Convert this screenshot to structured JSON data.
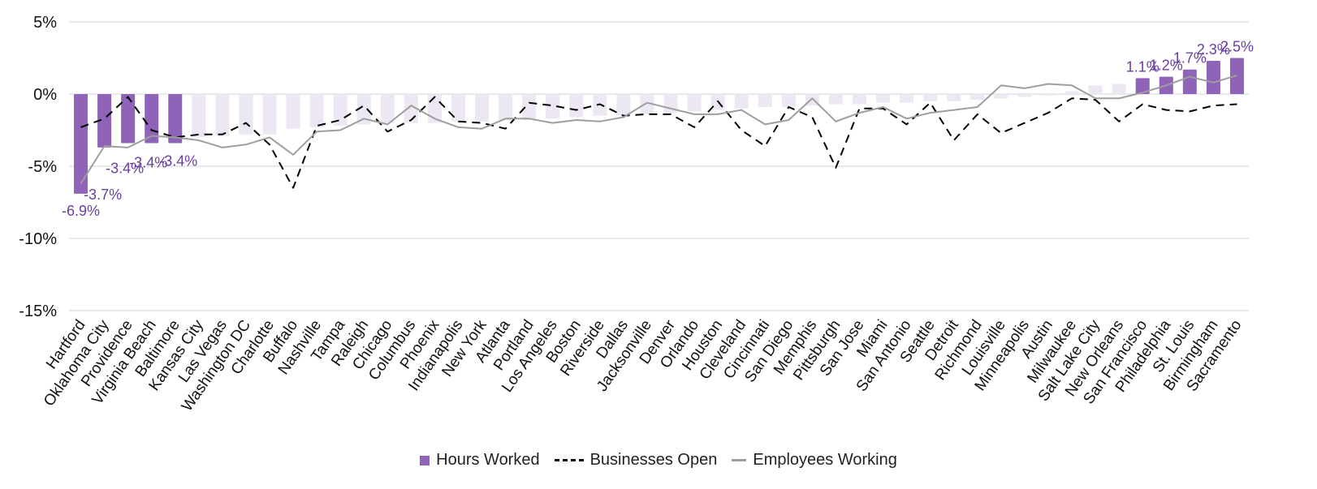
{
  "chart_data": {
    "type": "bar",
    "title": "",
    "xlabel": "",
    "ylabel": "",
    "ylim": [
      -15,
      5
    ],
    "yticks": [
      5,
      0,
      -5,
      -10,
      -15
    ],
    "ytick_labels": [
      "5%",
      "0%",
      "-5%",
      "-10%",
      "-15%"
    ],
    "grid": true,
    "legend_position": "bottom",
    "categories": [
      "Hartford",
      "Oklahoma City",
      "Providence",
      "Virginia Beach",
      "Baltimore",
      "Kansas City",
      "Las Vegas",
      "Washington DC",
      "Charlotte",
      "Buffalo",
      "Nashville",
      "Tampa",
      "Raleigh",
      "Chicago",
      "Columbus",
      "Phoenix",
      "Indianapolis",
      "New York",
      "Atlanta",
      "Portland",
      "Los Angeles",
      "Boston",
      "Riverside",
      "Dallas",
      "Jacksonville",
      "Denver",
      "Orlando",
      "Houston",
      "Cleveland",
      "Cincinnati",
      "San Diego",
      "Memphis",
      "Pittsburgh",
      "San Jose",
      "Miami",
      "San Antonio",
      "Seattle",
      "Detroit",
      "Richmond",
      "Louisville",
      "Minneapolis",
      "Austin",
      "Milwaukee",
      "Salt Lake City",
      "New Orleans",
      "San Francisco",
      "Philadelphia",
      "St. Louis",
      "Birmingham",
      "Sacramento"
    ],
    "series": [
      {
        "name": "Hours Worked",
        "kind": "bar",
        "color": "#8e63b8",
        "faded_color": "#ece7f3",
        "values": [
          -6.9,
          -3.7,
          -3.4,
          -3.4,
          -3.4,
          -3.0,
          -2.9,
          -2.8,
          -2.8,
          -2.4,
          -2.3,
          -2.2,
          -2.1,
          -2.0,
          -2.0,
          -2.0,
          -1.9,
          -1.9,
          -1.8,
          -1.8,
          -1.7,
          -1.6,
          -1.5,
          -1.5,
          -1.4,
          -1.3,
          -1.2,
          -1.1,
          -1.0,
          -0.9,
          -0.9,
          -0.8,
          -0.7,
          -0.7,
          -0.6,
          -0.6,
          -0.5,
          -0.5,
          -0.4,
          -0.3,
          -0.2,
          -0.1,
          0.2,
          0.6,
          0.7,
          1.1,
          1.2,
          1.7,
          2.3,
          2.5
        ],
        "highlighted": [
          true,
          true,
          true,
          true,
          true,
          false,
          false,
          false,
          false,
          false,
          false,
          false,
          false,
          false,
          false,
          false,
          false,
          false,
          false,
          false,
          false,
          false,
          false,
          false,
          false,
          false,
          false,
          false,
          false,
          false,
          false,
          false,
          false,
          false,
          false,
          false,
          false,
          false,
          false,
          false,
          false,
          false,
          false,
          false,
          false,
          true,
          true,
          true,
          true,
          true
        ]
      },
      {
        "name": "Businesses Open",
        "kind": "line-dashed",
        "color": "#000000",
        "values": [
          -2.3,
          -1.7,
          -0.2,
          -2.5,
          -3.0,
          -2.8,
          -2.8,
          -2.0,
          -3.5,
          -6.5,
          -2.2,
          -1.8,
          -0.8,
          -2.6,
          -1.8,
          -0.2,
          -1.9,
          -2.0,
          -2.4,
          -0.6,
          -0.8,
          -1.1,
          -0.7,
          -1.5,
          -1.4,
          -1.4,
          -2.3,
          -0.5,
          -2.5,
          -3.6,
          -0.9,
          -1.6,
          -5.1,
          -1.0,
          -1.0,
          -2.1,
          -0.6,
          -3.2,
          -1.4,
          -2.7,
          -2.0,
          -1.3,
          -0.3,
          -0.4,
          -1.9,
          -0.7,
          -1.1,
          -1.2,
          -0.8,
          -0.7
        ]
      },
      {
        "name": "Employees Working",
        "kind": "line",
        "color": "#9e9e9e",
        "values": [
          -6.2,
          -3.6,
          -3.7,
          -2.9,
          -3.0,
          -3.2,
          -3.7,
          -3.5,
          -3.0,
          -4.2,
          -2.6,
          -2.5,
          -1.7,
          -2.1,
          -0.8,
          -1.7,
          -2.3,
          -2.4,
          -1.7,
          -1.7,
          -2.0,
          -1.8,
          -1.9,
          -1.6,
          -0.6,
          -1.0,
          -1.4,
          -1.4,
          -1.1,
          -2.1,
          -1.8,
          -0.3,
          -1.9,
          -1.3,
          -0.9,
          -1.7,
          -1.3,
          -1.1,
          -0.9,
          0.6,
          0.4,
          0.7,
          0.6,
          -0.3,
          -0.3,
          0.1,
          0.6,
          1.2,
          0.8,
          1.3
        ]
      }
    ],
    "data_labels": [
      {
        "index": 0,
        "text": "-6.9%"
      },
      {
        "index": 1,
        "text": "-3.7%"
      },
      {
        "index": 2,
        "text": "-3.4%"
      },
      {
        "index": 3,
        "text": "-3.4%"
      },
      {
        "index": 4,
        "text": "-3.4%"
      },
      {
        "index": 45,
        "text": "1.1%"
      },
      {
        "index": 46,
        "text": "1.2%"
      },
      {
        "index": 47,
        "text": "1.7%"
      },
      {
        "index": 48,
        "text": "2.3%"
      },
      {
        "index": 49,
        "text": "2.5%"
      }
    ],
    "label_color": "#6a3ea1",
    "grid_color": "#d0d0d0"
  },
  "legend": {
    "hours_label": "Hours Worked",
    "businesses_label": "Businesses Open",
    "employees_label": "Employees Working"
  }
}
